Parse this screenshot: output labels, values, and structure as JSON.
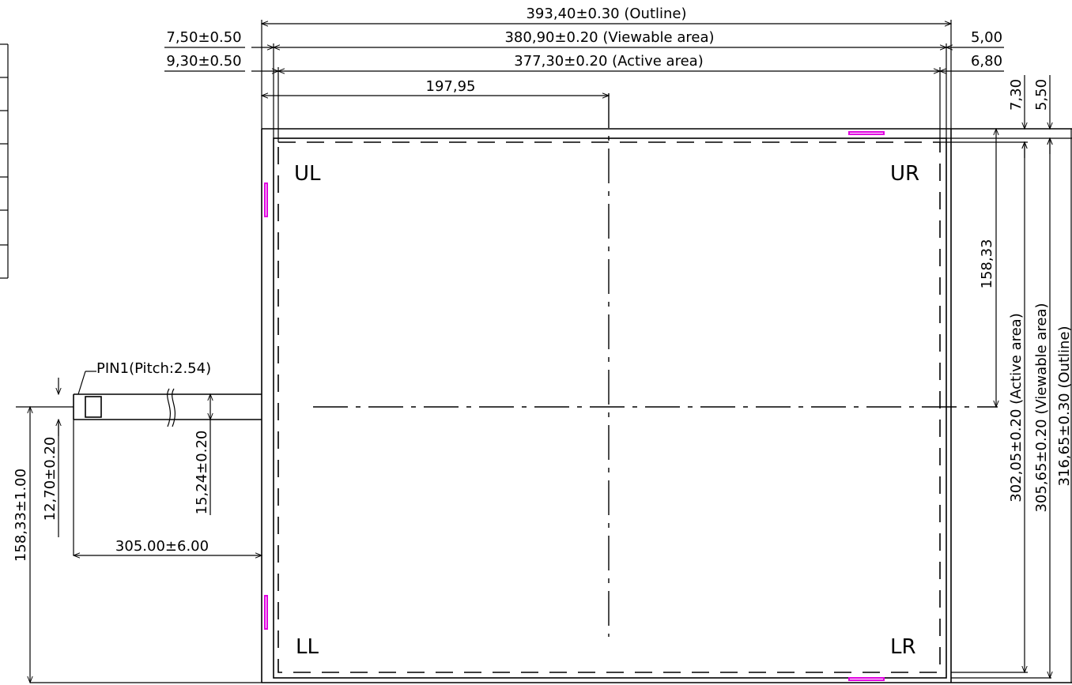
{
  "dimensions": {
    "outline_width": "393,40±0.30 (Outline)",
    "viewable_width": "380,90±0.20 (Viewable area)",
    "active_width": "377,30±0.20 (Active area)",
    "center_x": "197,95",
    "left_viewable_offset": "7,50±0.50",
    "left_active_offset": "9,30±0.50",
    "right_viewable_offset": "5,00",
    "right_active_offset": "6,80",
    "top_active_offset": "7,30",
    "top_viewable_offset": "5,50",
    "center_y": "158,33",
    "active_height": "302,05±0.20 (Active area)",
    "viewable_height": "305,65±0.20 (Viewable area)",
    "outline_height": "316,65±0.30 (Outline)",
    "tail_position": "158,33±1.00",
    "tail_width_inner": "12,70±0.20",
    "tail_width": "15,24±0.20",
    "tail_length": "305.00±6.00",
    "pin1": "PIN1(Pitch:2.54)"
  },
  "corners": {
    "upper_left": "UL",
    "upper_right": "UR",
    "lower_left": "LL",
    "lower_right": "LR"
  }
}
